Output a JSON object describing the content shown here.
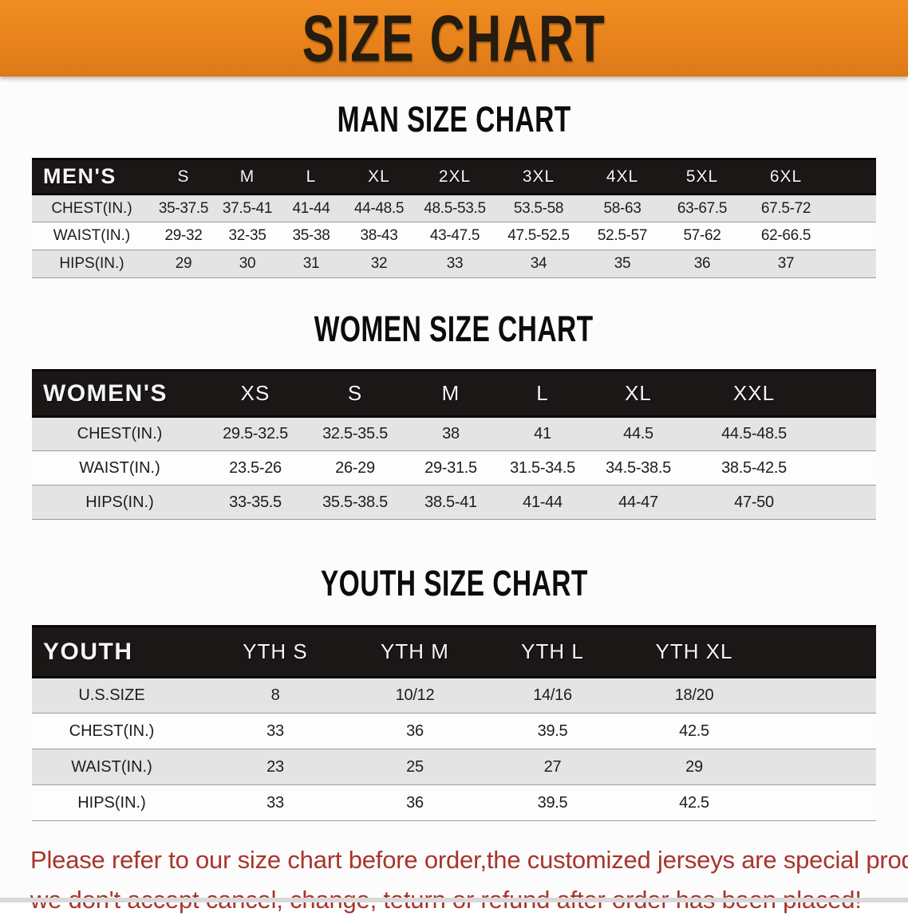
{
  "banner": {
    "title": "SIZE CHART",
    "background_color": "#E8821C",
    "text_color": "#251B0E"
  },
  "sections": [
    {
      "heading": "MAN SIZE CHART",
      "header_label": "MEN'S",
      "columns": [
        "S",
        "M",
        "L",
        "XL",
        "2XL",
        "3XL",
        "4XL",
        "5XL",
        "6XL"
      ],
      "rows": [
        {
          "label": "CHEST(IN.)",
          "values": [
            "35-37.5",
            "37.5-41",
            "41-44",
            "44-48.5",
            "48.5-53.5",
            "53.5-58",
            "58-63",
            "63-67.5",
            "67.5-72"
          ]
        },
        {
          "label": "WAIST(IN.)",
          "values": [
            "29-32",
            "32-35",
            "35-38",
            "38-43",
            "43-47.5",
            "47.5-52.5",
            "52.5-57",
            "57-62",
            "62-66.5"
          ]
        },
        {
          "label": "HIPS(IN.)",
          "values": [
            "29",
            "30",
            "31",
            "32",
            "33",
            "34",
            "35",
            "36",
            "37"
          ]
        }
      ]
    },
    {
      "heading": "WOMEN SIZE CHART",
      "header_label": "WOMEN'S",
      "columns": [
        "XS",
        "S",
        "M",
        "L",
        "XL",
        "XXL"
      ],
      "rows": [
        {
          "label": "CHEST(IN.)",
          "values": [
            "29.5-32.5",
            "32.5-35.5",
            "38",
            "41",
            "44.5",
            "44.5-48.5"
          ]
        },
        {
          "label": "WAIST(IN.)",
          "values": [
            "23.5-26",
            "26-29",
            "29-31.5",
            "31.5-34.5",
            "34.5-38.5",
            "38.5-42.5"
          ]
        },
        {
          "label": "HIPS(IN.)",
          "values": [
            "33-35.5",
            "35.5-38.5",
            "38.5-41",
            "41-44",
            "44-47",
            "47-50"
          ]
        }
      ]
    },
    {
      "heading": "YOUTH SIZE CHART",
      "header_label": "YOUTH",
      "columns": [
        "YTH S",
        "YTH M",
        "YTH L",
        "YTH XL"
      ],
      "rows": [
        {
          "label": "U.S.SIZE",
          "values": [
            "8",
            "10/12",
            "14/16",
            "18/20"
          ]
        },
        {
          "label": "CHEST(IN.)",
          "values": [
            "33",
            "36",
            "39.5",
            "42.5"
          ]
        },
        {
          "label": "WAIST(IN.)",
          "values": [
            "23",
            "25",
            "27",
            "29"
          ]
        },
        {
          "label": "HIPS(IN.)",
          "values": [
            "33",
            "36",
            "39.5",
            "42.5"
          ]
        }
      ]
    }
  ],
  "footer": {
    "line1": "Please refer to our size chart before order,the customized jerseys are special products,",
    "line2": "we don't accept cancel, change, teturn or refund after order has been placed!",
    "text_color": "#A8342C"
  },
  "table_style": {
    "header_bar_color": "#1B1717",
    "stripe_color": "#E4E4E4"
  }
}
